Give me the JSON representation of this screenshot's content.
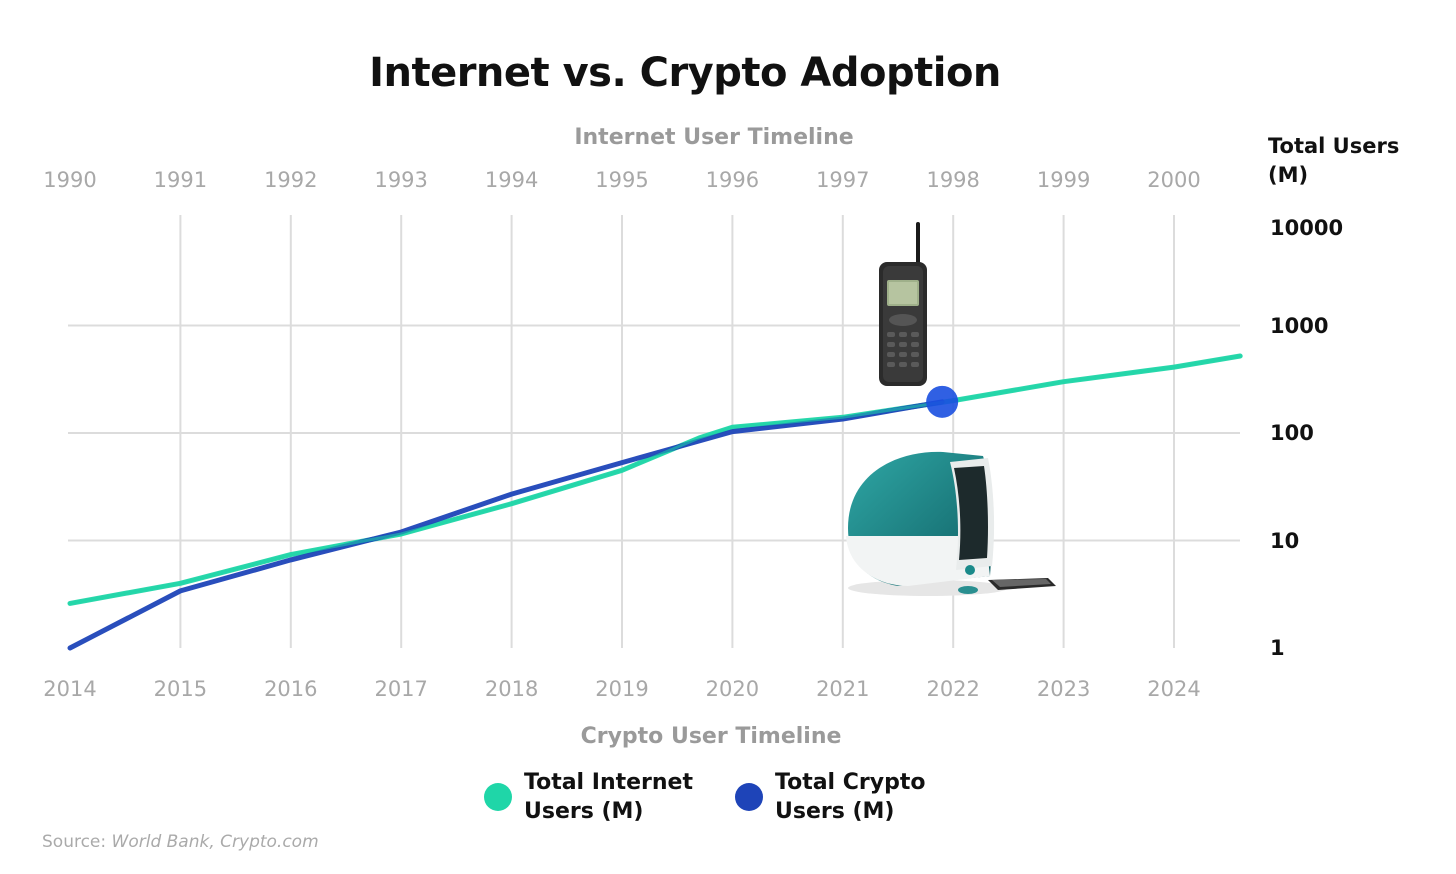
{
  "chart_data": {
    "type": "line",
    "title": "Internet vs. Crypto Adoption",
    "top_axis_title": "Internet User Timeline",
    "top_axis_ticks": [
      "1990",
      "1991",
      "1992",
      "1993",
      "1994",
      "1995",
      "1996",
      "1997",
      "1998",
      "1999",
      "2000"
    ],
    "bottom_axis_title": "Crypto User Timeline",
    "bottom_axis_ticks": [
      "2014",
      "2015",
      "2016",
      "2017",
      "2018",
      "2019",
      "2020",
      "2021",
      "2022",
      "2023",
      "2024"
    ],
    "ylabel": "Total Users (M)",
    "yscale": "log",
    "ylim": [
      1,
      10000
    ],
    "y_ticks": [
      "10000",
      "1000",
      "100",
      "10",
      "1"
    ],
    "y_tick_values": [
      10000,
      1000,
      100,
      10,
      1
    ],
    "x_index_range": [
      0,
      10.6
    ],
    "grid": true,
    "legend_position": "bottom",
    "series": [
      {
        "name": "Total Internet Users (M)",
        "color": "#1fd6a8",
        "x_index": [
          0,
          1,
          2,
          3,
          4,
          5,
          5.7,
          6,
          7,
          8,
          9,
          10,
          10.6
        ],
        "values": [
          2.6,
          4.0,
          7.4,
          11.5,
          22,
          45,
          90,
          113,
          140,
          200,
          300,
          410,
          520
        ]
      },
      {
        "name": "Total Crypto Users (M)",
        "color": "#1e44b8",
        "x_index": [
          0,
          1,
          2,
          3,
          4,
          5,
          6,
          7,
          7.9
        ],
        "values": [
          1.0,
          3.4,
          6.6,
          12,
          27,
          53,
          103,
          135,
          195
        ]
      }
    ],
    "highlight_point": {
      "x_index": 7.9,
      "value": 195,
      "color": "#1a4fe0"
    },
    "source_prefix": "Source: ",
    "source_names": "World Bank, Crypto.com"
  },
  "icons": [
    "mobile-phone-icon",
    "imac-computer-icon"
  ]
}
